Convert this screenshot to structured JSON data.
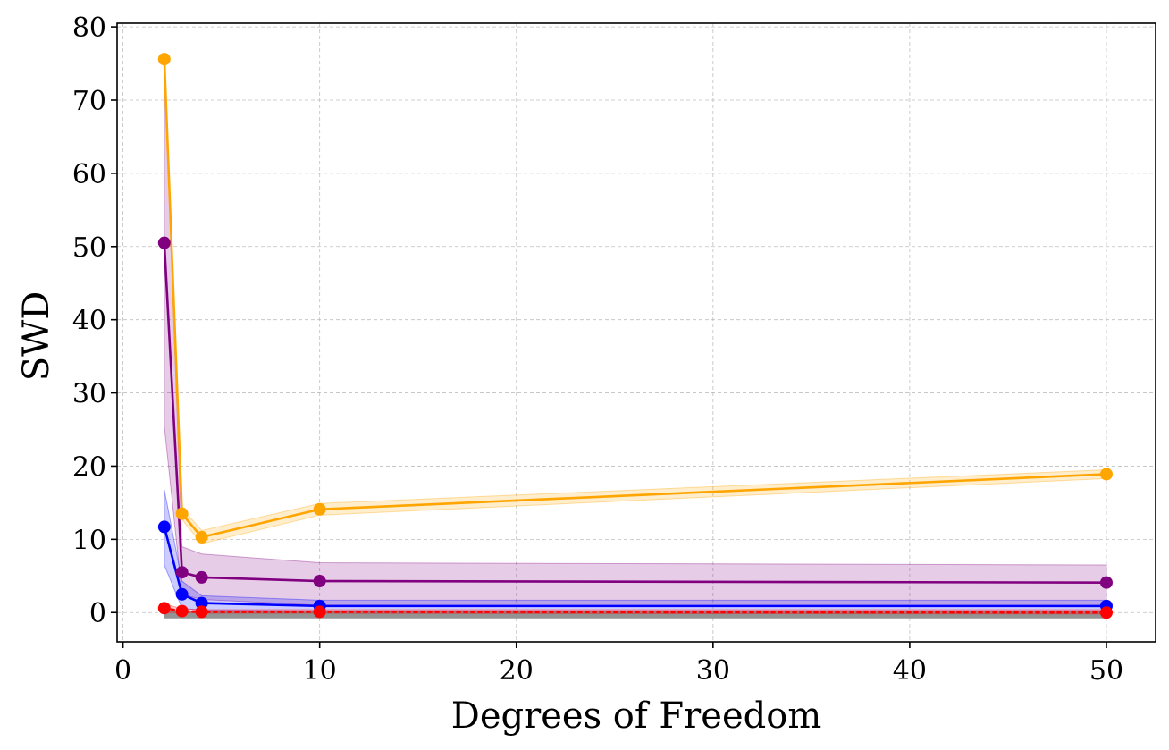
{
  "chart_data": {
    "type": "line",
    "title": "",
    "xlabel": "Degrees of Freedom",
    "ylabel": "SWD",
    "xlim": [
      -0.3,
      52.5
    ],
    "ylim": [
      -4,
      80.5
    ],
    "xticks": [
      0,
      10,
      20,
      30,
      40,
      50
    ],
    "yticks": [
      0,
      10,
      20,
      30,
      40,
      50,
      60,
      70,
      80
    ],
    "grid": true,
    "x": [
      2.1,
      3,
      4,
      10,
      50
    ],
    "series": [
      {
        "color": "#ffa500",
        "values": [
          75.6,
          13.5,
          10.3,
          14.1,
          18.9
        ],
        "band_lower": [
          75.6,
          12.7,
          9.4,
          13.3,
          18.3
        ],
        "band_upper": [
          75.6,
          14.3,
          11.2,
          14.9,
          19.5
        ],
        "line_style": "solid"
      },
      {
        "color": "#800080",
        "values": [
          50.5,
          5.5,
          4.8,
          4.3,
          4.1
        ],
        "band_lower": [
          25.5,
          2.5,
          1.8,
          1.0,
          0.8
        ],
        "band_upper": [
          75.5,
          9.0,
          8.0,
          6.8,
          6.5
        ],
        "line_style": "solid"
      },
      {
        "color": "#0000ff",
        "values": [
          11.7,
          2.5,
          1.3,
          0.9,
          0.9
        ],
        "band_lower": [
          6.5,
          0.6,
          0.3,
          0.2,
          0.2
        ],
        "band_upper": [
          16.8,
          4.3,
          2.3,
          1.7,
          1.7
        ],
        "line_style": "solid"
      },
      {
        "color": "#ff0000",
        "values": [
          0.6,
          0.2,
          0.1,
          0.1,
          0.0
        ],
        "band_lower": [
          0.0,
          0.0,
          -0.1,
          -0.1,
          -0.2
        ],
        "band_upper": [
          1.2,
          0.5,
          0.4,
          0.4,
          0.4
        ],
        "line_style": "dotted"
      }
    ],
    "gray_band": {
      "color": "#808080",
      "x": [
        2.1,
        50
      ],
      "lower": [
        -0.8,
        -0.8
      ],
      "upper": [
        0.2,
        0.2
      ]
    }
  }
}
